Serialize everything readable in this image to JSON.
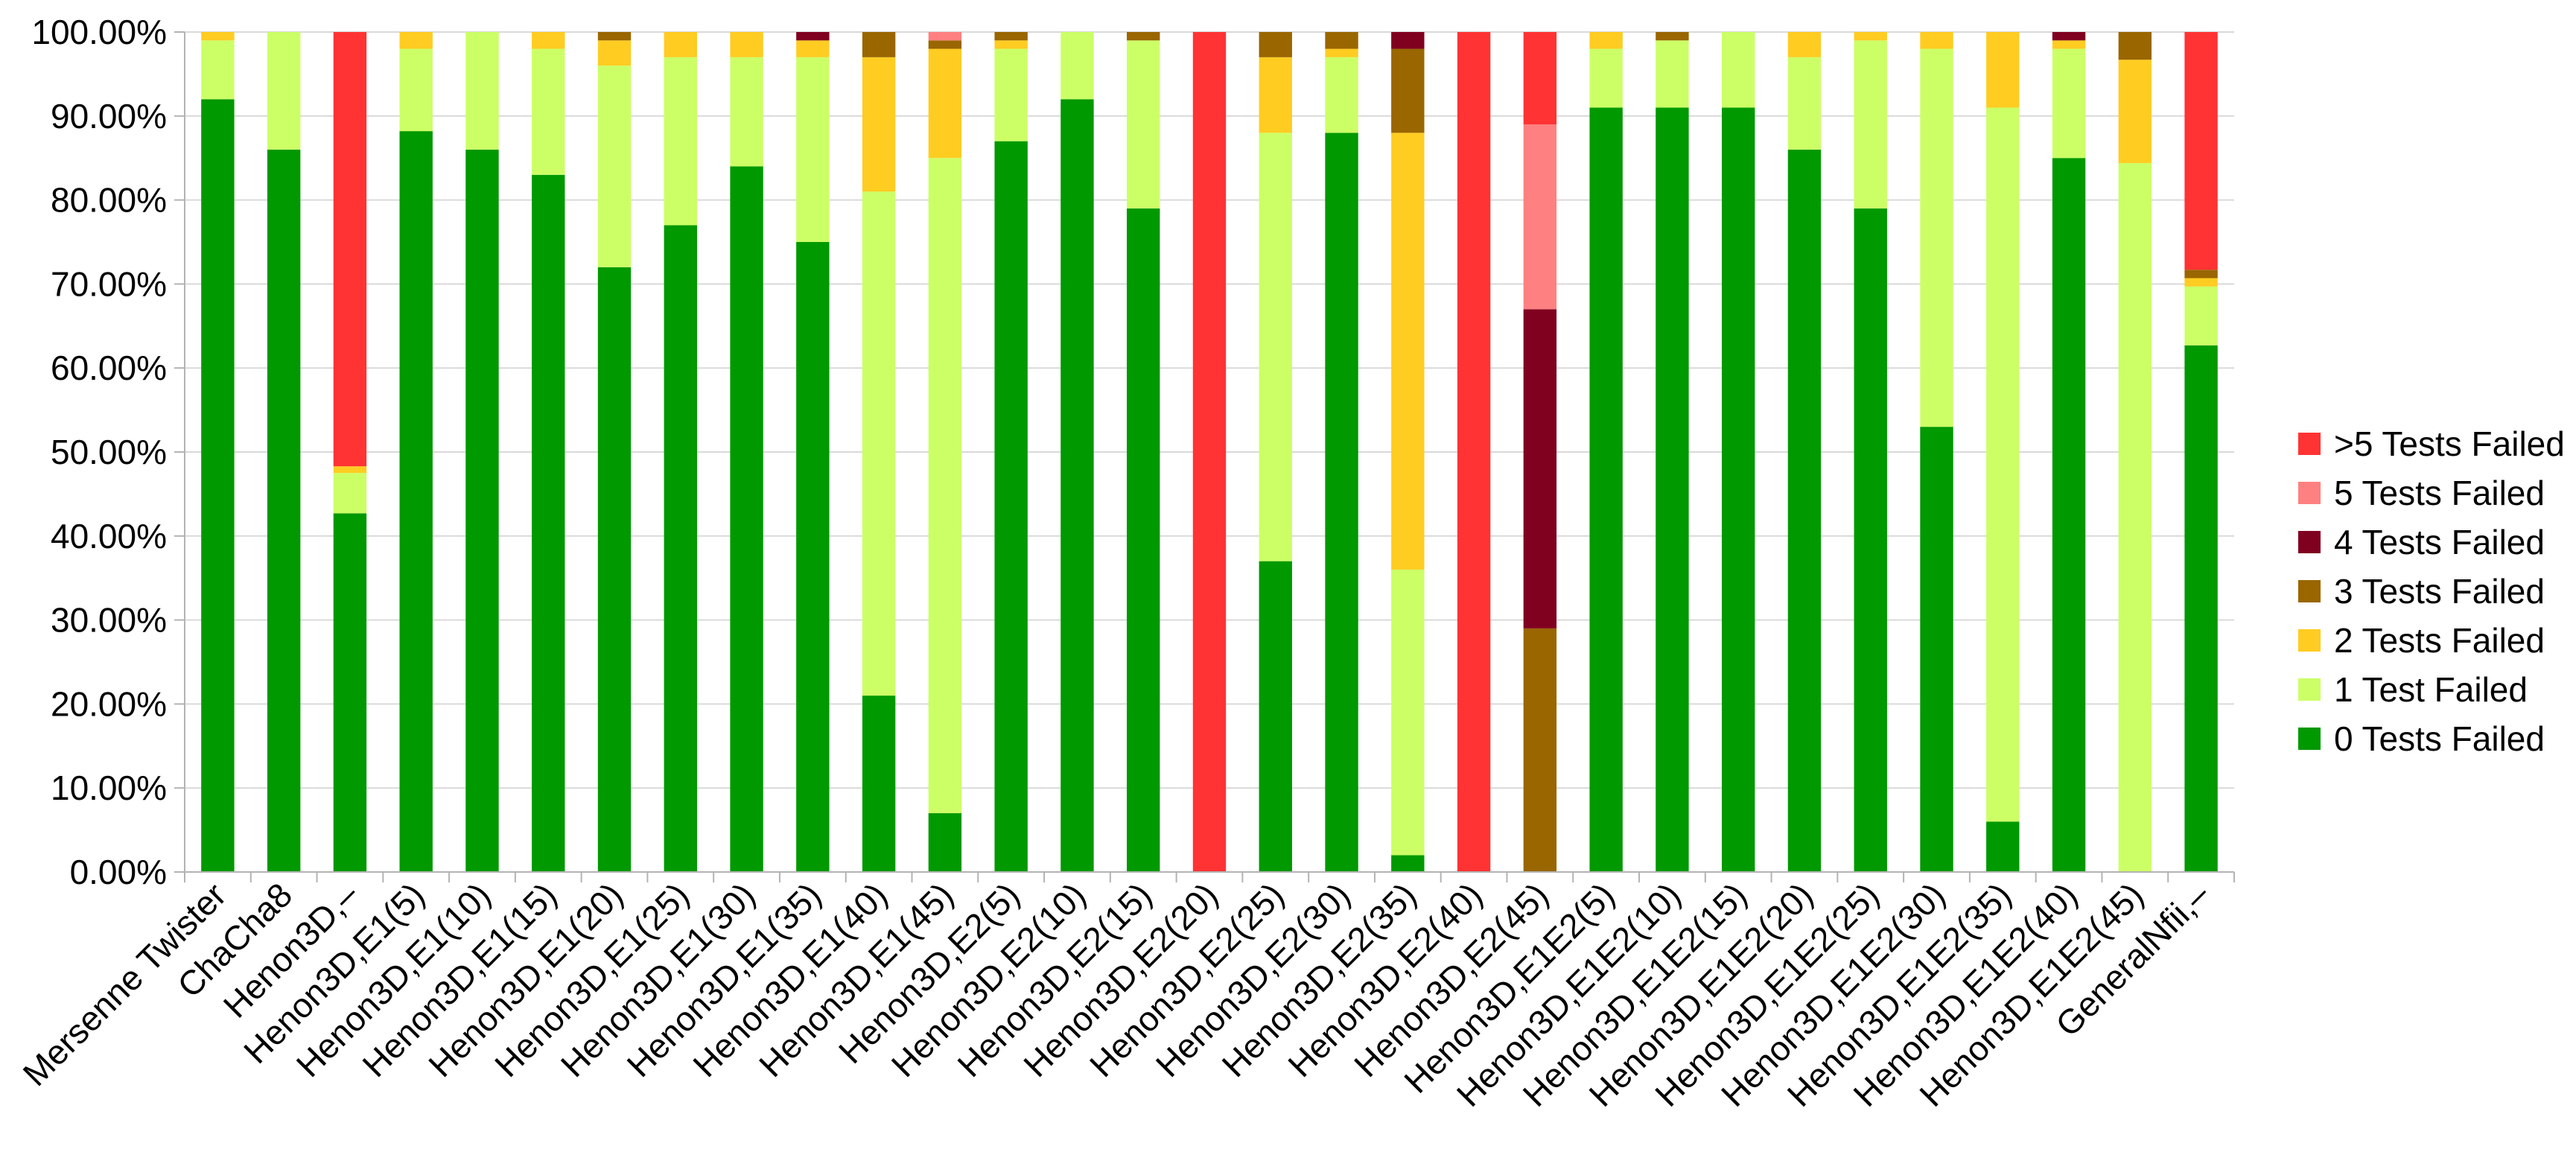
{
  "chart_data": {
    "type": "bar",
    "stacked": true,
    "title": "",
    "xlabel": "",
    "ylabel": "",
    "ylim": [
      0,
      100
    ],
    "y_ticks": [
      "0.00%",
      "10.00%",
      "20.00%",
      "30.00%",
      "40.00%",
      "50.00%",
      "60.00%",
      "70.00%",
      "80.00%",
      "90.00%",
      "100.00%"
    ],
    "grid": true,
    "legend_position": "right",
    "categories": [
      "Mersenne Twister",
      "ChaCha8",
      "Henon3D,–",
      "Henon3D,E1(5)",
      "Henon3D,E1(10)",
      "Henon3D,E1(15)",
      "Henon3D,E1(20)",
      "Henon3D,E1(25)",
      "Henon3D,E1(30)",
      "Henon3D,E1(35)",
      "Henon3D,E1(40)",
      "Henon3D,E1(45)",
      "Henon3D,E2(5)",
      "Henon3D,E2(10)",
      "Henon3D,E2(15)",
      "Henon3D,E2(20)",
      "Henon3D,E2(25)",
      "Henon3D,E2(30)",
      "Henon3D,E2(35)",
      "Henon3D,E2(40)",
      "Henon3D,E2(45)",
      "Henon3D,E1E2(5)",
      "Henon3D,E1E2(10)",
      "Henon3D,E1E2(15)",
      "Henon3D,E1E2(20)",
      "Henon3D,E1E2(25)",
      "Henon3D,E1E2(30)",
      "Henon3D,E1E2(35)",
      "Henon3D,E1E2(40)",
      "Henon3D,E1E2(45)",
      "GeneralNfii,–"
    ],
    "series": [
      {
        "name": "0 Tests Failed",
        "color": "#009900",
        "values": [
          92,
          86,
          42.7,
          88.2,
          86,
          83,
          72,
          77,
          84,
          75,
          21,
          7,
          87,
          92,
          79,
          0,
          37,
          88,
          2,
          0,
          0,
          91,
          91,
          91,
          86,
          79,
          53,
          6,
          85,
          0,
          62.7
        ]
      },
      {
        "name": "1 Test Failed",
        "color": "#ccff66",
        "values": [
          7,
          14,
          4.8,
          9.8,
          14,
          15,
          24,
          20,
          13,
          22,
          60,
          78,
          11,
          8,
          20,
          0,
          51,
          9,
          34,
          0,
          0,
          7,
          8,
          9,
          11,
          20,
          45,
          85,
          13,
          84.4,
          7
        ]
      },
      {
        "name": "2 Tests Failed",
        "color": "#ffcc22",
        "values": [
          1,
          0,
          0.8,
          2,
          0,
          2,
          3,
          3,
          3,
          2,
          16,
          13,
          1,
          0,
          0,
          0,
          9,
          1,
          52,
          0,
          0,
          2,
          0,
          0,
          3,
          1,
          2,
          9,
          1,
          12.3,
          1
        ]
      },
      {
        "name": "3 Tests Failed",
        "color": "#996600",
        "values": [
          0,
          0,
          0,
          0,
          0,
          0,
          1,
          0,
          0,
          0,
          3,
          1,
          1,
          0,
          1,
          0,
          3,
          2,
          10,
          0,
          29,
          0,
          1,
          0,
          0,
          0,
          0,
          0,
          0,
          3.3,
          1
        ]
      },
      {
        "name": "4 Tests Failed",
        "color": "#800020",
        "values": [
          0,
          0,
          0,
          0,
          0,
          0,
          0,
          0,
          0,
          1,
          0,
          0,
          0,
          0,
          0,
          0,
          0,
          0,
          2,
          0,
          38,
          0,
          0,
          0,
          0,
          0,
          0,
          0,
          1,
          0,
          0
        ]
      },
      {
        "name": "5 Tests Failed",
        "color": "#ff8080",
        "values": [
          0,
          0,
          0,
          0,
          0,
          0,
          0,
          0,
          0,
          0,
          0,
          1,
          0,
          0,
          0,
          0,
          0,
          0,
          0,
          0,
          22,
          0,
          0,
          0,
          0,
          0,
          0,
          0,
          0,
          0,
          0
        ]
      },
      {
        "name": ">5 Tests Failed",
        "color": "#ff3333",
        "values": [
          0,
          0,
          51.7,
          0,
          0,
          0,
          0,
          0,
          0,
          0,
          0,
          0,
          0,
          0,
          0,
          100,
          0,
          0,
          0,
          100,
          11,
          0,
          0,
          0,
          0,
          0,
          0,
          0,
          0,
          0,
          28.3
        ]
      }
    ],
    "legend_order": [
      ">5 Tests Failed",
      "5 Tests Failed",
      "4 Tests Failed",
      "3 Tests Failed",
      "2 Tests Failed",
      "1 Test Failed",
      "0 Tests Failed"
    ]
  }
}
